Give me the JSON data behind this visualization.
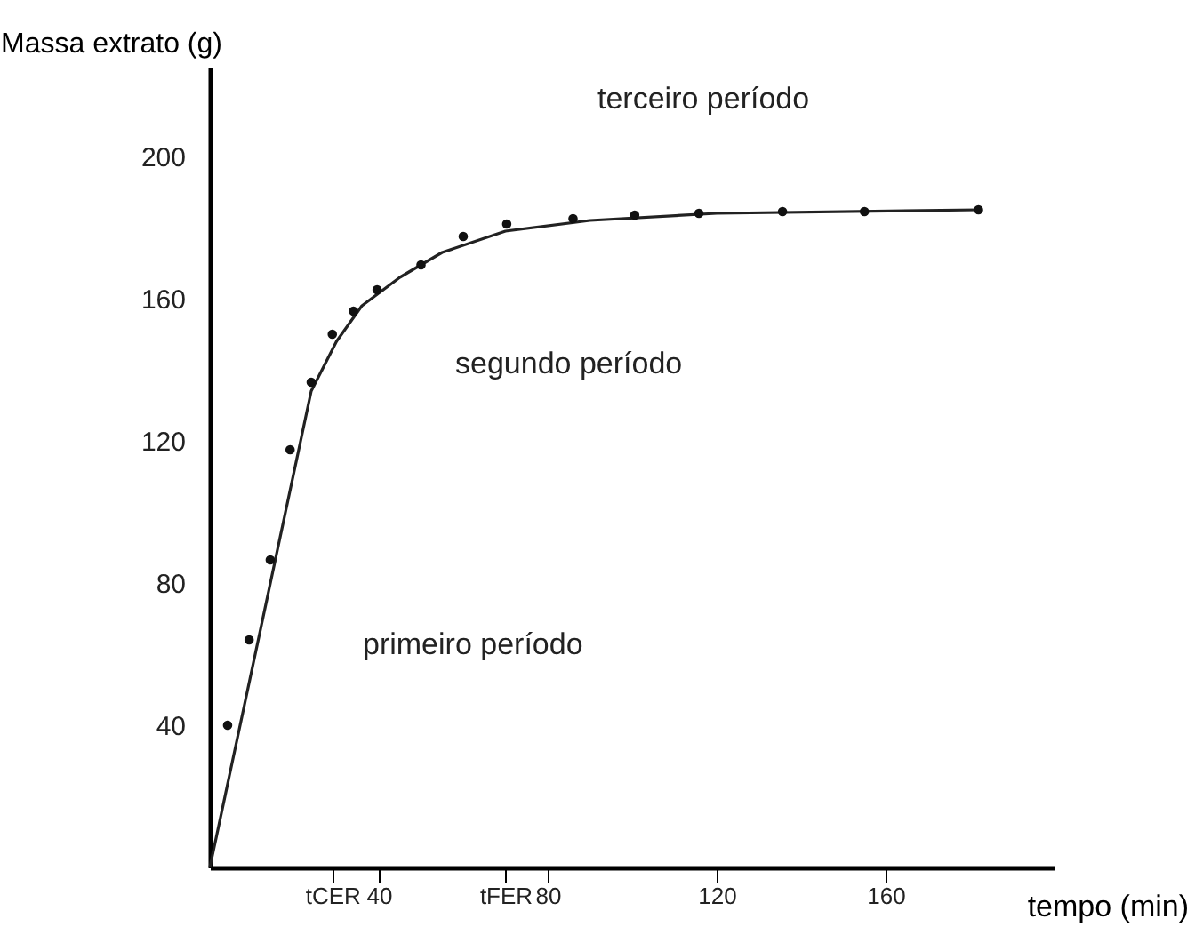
{
  "chart_data": {
    "type": "scatter",
    "xlabel": "tempo (min)",
    "ylabel": "Massa extrato (g)",
    "xlim": [
      0,
      200
    ],
    "ylim": [
      0,
      225
    ],
    "xticks": [
      {
        "value": 29,
        "label": "tCER"
      },
      40,
      {
        "value": 70,
        "label": "tFER"
      },
      80,
      120,
      160
    ],
    "yticks": [
      40,
      80,
      120,
      160,
      200
    ],
    "grid": false,
    "series": [
      {
        "type": "line",
        "color": "#222222",
        "marker": "none",
        "line_style": "solid",
        "x": [
          0,
          24,
          30,
          36,
          45,
          55,
          70,
          90,
          120,
          182
        ],
        "values": [
          0,
          134,
          148,
          158,
          166,
          173,
          179,
          182,
          184,
          185
        ]
      },
      {
        "type": "scatter",
        "color": "#111111",
        "marker": "circle",
        "x": [
          4.2,
          9.3,
          14.3,
          19,
          24,
          29,
          34,
          39.6,
          50,
          60,
          70.3,
          86,
          100.6,
          115.8,
          135.6,
          155,
          182
        ],
        "values": [
          40,
          64,
          86.5,
          117.5,
          136.5,
          150,
          156.5,
          162.5,
          169.5,
          177.5,
          181,
          182.5,
          183.5,
          184,
          184.5,
          184.5,
          185
        ]
      }
    ],
    "annotations": [
      "primeiro período",
      "segundo período",
      "terceiro período"
    ]
  }
}
